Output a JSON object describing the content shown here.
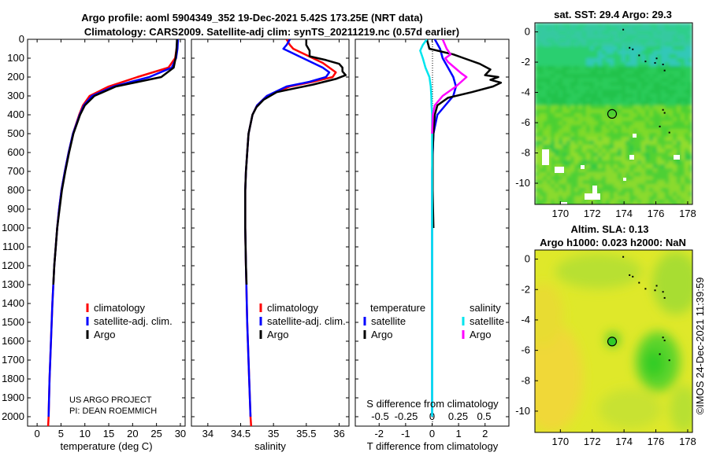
{
  "titles": {
    "main_line1": "Argo profile: aoml 5904349_352 19-Dec-2021 5.42S 173.25E (NRT data)",
    "main_line2": "Climatology: CARS2009. Satellite-adj clim: synTS_20211219.nc (0.57d earlier)",
    "sst": "sat. SST: 29.4 Argo: 29.3",
    "sla_line1": "Altim. SLA: 0.13",
    "sla_line2": "Argo h1000: 0.023 h2000: NaN"
  },
  "project_note": {
    "line1": "US ARGO PROJECT",
    "line2": "PI: DEAN ROEMMICH"
  },
  "stamp": "©IMOS 24-Dec-2021 11:39:59",
  "colors": {
    "climatology": "#ff0000",
    "satellite_adj": "#0000ff",
    "argo": "#000000",
    "satellite_diff": "#00e5ee",
    "argo_s_diff": "#ff00ff"
  },
  "chart_data": [
    {
      "type": "line",
      "panel": "temperature",
      "xlabel": "temperature (deg C)",
      "ylabel": "",
      "xlim": [
        -2,
        31
      ],
      "ylim": [
        2050,
        0
      ],
      "xticks": [
        0,
        5,
        10,
        15,
        20,
        25,
        30
      ],
      "yticks": [
        0,
        100,
        200,
        300,
        400,
        500,
        600,
        700,
        800,
        900,
        1000,
        1100,
        1200,
        1300,
        1400,
        1500,
        1600,
        1700,
        1800,
        1900,
        2000
      ],
      "legend": {
        "entries": [
          "climatology",
          "satellite-adj. clim.",
          "Argo"
        ]
      },
      "series": [
        {
          "name": "climatology",
          "color": "#ff0000",
          "depth": [
            0,
            50,
            100,
            150,
            200,
            250,
            300,
            350,
            400,
            500,
            600,
            700,
            800,
            900,
            1000,
            1200,
            1400,
            1600,
            1800,
            2000,
            2050
          ],
          "values": [
            29.4,
            29.2,
            28.9,
            27.5,
            21,
            15,
            11,
            9.6,
            8.8,
            7.5,
            6.6,
            5.8,
            5.1,
            4.6,
            4.2,
            3.6,
            3.2,
            2.9,
            2.6,
            2.4,
            2.3
          ]
        },
        {
          "name": "satellite-adj. clim.",
          "color": "#0000ff",
          "depth": [
            0,
            50,
            100,
            150,
            200,
            250,
            300,
            350,
            400,
            500,
            600,
            700,
            800,
            900,
            1000,
            1200,
            1400,
            1600,
            1800,
            2000
          ],
          "values": [
            29.5,
            29.4,
            29.1,
            28.2,
            23.5,
            16,
            11.5,
            9.8,
            8.9,
            7.5,
            6.6,
            5.8,
            5.1,
            4.6,
            4.2,
            3.6,
            3.2,
            2.9,
            2.6,
            2.4
          ]
        },
        {
          "name": "Argo",
          "color": "#000000",
          "depth": [
            0,
            50,
            100,
            150,
            200,
            250,
            300,
            350,
            400,
            500,
            600,
            700,
            800,
            900,
            1000,
            1100,
            1200,
            1300
          ],
          "values": [
            29.3,
            29.2,
            29.0,
            28.6,
            26,
            16.5,
            12,
            10,
            9,
            7.6,
            6.7,
            5.9,
            5.2,
            4.7,
            4.2,
            3.9,
            3.6,
            3.4
          ]
        }
      ]
    },
    {
      "type": "line",
      "panel": "salinity",
      "xlabel": "salinity",
      "ylabel": "",
      "xlim": [
        33.75,
        36.15
      ],
      "ylim": [
        2050,
        0
      ],
      "xticks": [
        34,
        34.5,
        35,
        35.5,
        36
      ],
      "legend": {
        "entries": [
          "climatology",
          "satellite-adj. clim.",
          "Argo"
        ]
      },
      "series": [
        {
          "name": "climatology",
          "color": "#ff0000",
          "depth": [
            0,
            30,
            50,
            75,
            100,
            125,
            150,
            175,
            200,
            225,
            250,
            300,
            350,
            400,
            500,
            600,
            700,
            800,
            1000,
            1200,
            1500,
            1800,
            2000,
            2050
          ],
          "values": [
            35.2,
            35.25,
            35.3,
            35.45,
            35.6,
            35.75,
            35.85,
            35.95,
            35.9,
            35.6,
            35.25,
            34.9,
            34.75,
            34.68,
            34.62,
            34.6,
            34.58,
            34.57,
            34.57,
            34.58,
            34.6,
            34.63,
            34.65,
            34.66
          ]
        },
        {
          "name": "satellite-adj. clim.",
          "color": "#0000ff",
          "depth": [
            0,
            30,
            50,
            75,
            100,
            125,
            150,
            175,
            200,
            225,
            250,
            300,
            350,
            400,
            500,
            600,
            700,
            800,
            1000,
            1200,
            1500,
            1800,
            2000
          ],
          "values": [
            35.25,
            35.2,
            35.15,
            35.3,
            35.45,
            35.6,
            35.75,
            35.85,
            35.8,
            35.55,
            35.2,
            34.9,
            34.75,
            34.68,
            34.62,
            34.6,
            34.58,
            34.57,
            34.57,
            34.58,
            34.6,
            34.63,
            34.65
          ]
        },
        {
          "name": "Argo",
          "color": "#000000",
          "depth": [
            0,
            30,
            60,
            90,
            110,
            130,
            150,
            170,
            190,
            210,
            240,
            280,
            320,
            360,
            400,
            500,
            600,
            700,
            800,
            1000,
            1200,
            1300
          ],
          "values": [
            35.5,
            35.5,
            35.55,
            35.55,
            35.8,
            36.0,
            36.05,
            36.05,
            36.1,
            35.95,
            35.6,
            35.05,
            34.85,
            34.74,
            34.68,
            34.62,
            34.6,
            34.58,
            34.57,
            34.57,
            34.58,
            34.59
          ]
        }
      ]
    },
    {
      "type": "line",
      "panel": "differences",
      "xlabel": "T difference from climatology",
      "xlabel_top": "S difference from climatology",
      "xlim": [
        -2.9,
        2.9
      ],
      "ylim": [
        2050,
        0
      ],
      "xticks": [
        -2,
        -1,
        0,
        1,
        2
      ],
      "xticks_top": [
        {
          "value": -0.5,
          "label": "-0.5"
        },
        {
          "value": -0.25,
          "label": "-0.25"
        },
        {
          "value": 0,
          "label": "0"
        },
        {
          "value": 0.25,
          "label": "0.25"
        },
        {
          "value": 0.5,
          "label": "0.5"
        }
      ],
      "legend": {
        "temperature_heading": "temperature",
        "salinity_heading": "salinity",
        "entries": [
          "satellite",
          "Argo",
          "satellite",
          "Argo"
        ]
      },
      "series": [
        {
          "name": "temperature satellite",
          "color": "#0000ff",
          "depth": [
            0,
            50,
            100,
            150,
            200,
            250,
            300,
            350,
            400,
            500,
            700,
            1000,
            1500,
            2000
          ],
          "values": [
            0.1,
            0.3,
            0.4,
            0.6,
            0.8,
            0.9,
            0.8,
            0.5,
            0.2,
            0.05,
            0,
            0,
            0,
            0
          ]
        },
        {
          "name": "temperature Argo",
          "color": "#000000",
          "depth": [
            0,
            50,
            80,
            100,
            130,
            160,
            190,
            200,
            215,
            230,
            250,
            280,
            310,
            350,
            400,
            500,
            600,
            800,
            1000
          ],
          "values": [
            -0.2,
            -0.1,
            0.8,
            1.2,
            1.8,
            2.2,
            2.0,
            2.5,
            2.2,
            2.6,
            2.3,
            1.5,
            0.6,
            0.2,
            0.1,
            0.05,
            0.02,
            0.02,
            0.05
          ]
        },
        {
          "name": "salinity satellite",
          "color": "#00e5ee",
          "depth": [
            0,
            30,
            60,
            100,
            150,
            200,
            250,
            300,
            350,
            400,
            500,
            700,
            1000,
            1500,
            2000
          ],
          "values": [
            -0.2,
            -0.35,
            -0.45,
            -0.35,
            -0.25,
            -0.1,
            -0.05,
            -0.03,
            -0.02,
            0,
            0,
            0,
            0,
            0,
            0
          ]
        },
        {
          "name": "salinity Argo",
          "color": "#ff00ff",
          "depth": [
            0,
            50,
            80,
            100,
            120,
            150,
            180,
            200,
            225,
            250,
            300,
            350,
            400,
            500
          ],
          "values": [
            0.4,
            0.55,
            0.7,
            0.5,
            0.6,
            0.85,
            1.1,
            1.3,
            1.1,
            0.9,
            0.4,
            0.1,
            0.03,
            0
          ]
        }
      ]
    },
    {
      "type": "heatmap",
      "panel": "satellite SST map",
      "xlim": [
        168.4,
        178.3
      ],
      "ylim": [
        -11.4,
        0.6
      ],
      "xticks": [
        170,
        172,
        174,
        176,
        178
      ],
      "yticks": [
        0,
        -2,
        -4,
        -6,
        -8,
        -10
      ],
      "marker": {
        "lon": 173.25,
        "lat": -5.42
      }
    },
    {
      "type": "heatmap",
      "panel": "altimetry SLA map",
      "xlim": [
        168.4,
        178.3
      ],
      "ylim": [
        -11.4,
        0.6
      ],
      "xticks": [
        170,
        172,
        174,
        176,
        178
      ],
      "yticks": [
        0,
        -2,
        -4,
        -6,
        -8,
        -10
      ],
      "marker": {
        "lon": 173.25,
        "lat": -5.42
      }
    }
  ]
}
